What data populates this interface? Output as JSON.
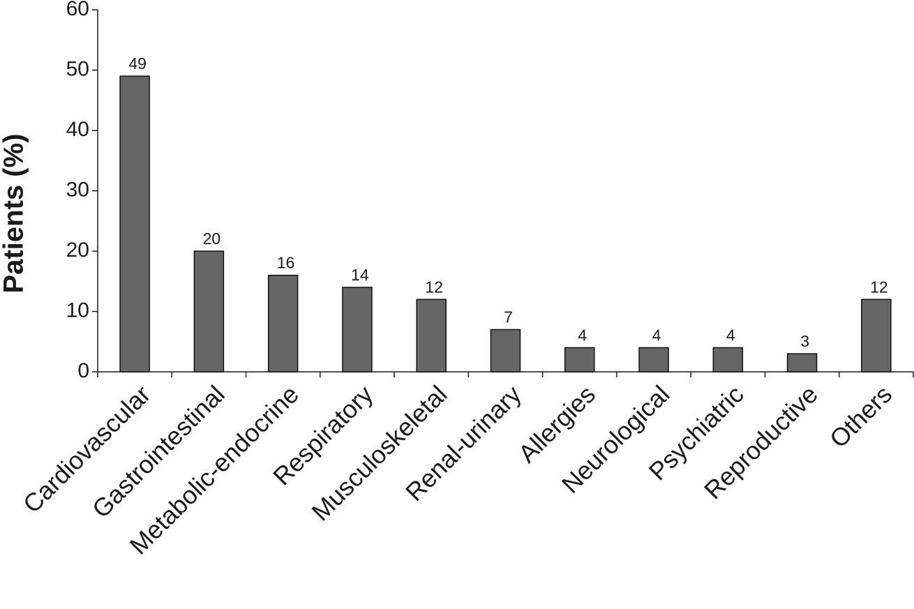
{
  "chart_data": {
    "type": "bar",
    "y_label": "Patients (%)",
    "categories": [
      "Cardiovascular",
      "Gastrointestinal",
      "Metabolic-endocrine",
      "Respiratory",
      "Musculoskeletal",
      "Renal-urinary",
      "Allergies",
      "Neurological",
      "Psychiatric",
      "Reproductive",
      "Others"
    ],
    "values": [
      49,
      20,
      16,
      14,
      12,
      7,
      4,
      4,
      4,
      3,
      12
    ],
    "color": "#666666",
    "ylim": [
      0,
      60
    ],
    "yticks": [
      0,
      10,
      20,
      30,
      40,
      50,
      60
    ],
    "grid": false
  }
}
